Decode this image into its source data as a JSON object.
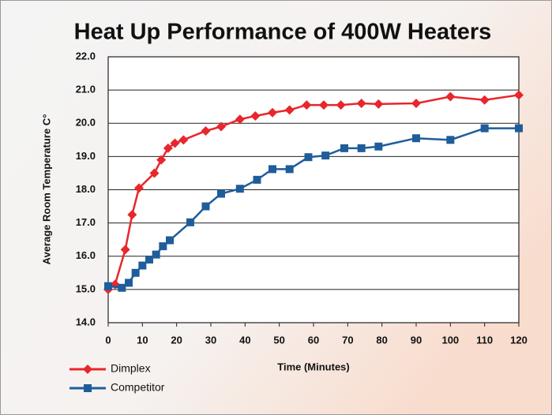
{
  "chart_data": {
    "type": "line",
    "title": "Heat Up Performance of 400W Heaters",
    "x_label": "Time (Minutes)",
    "y_label": "Average Room Temperature C°",
    "xlim": [
      0,
      120
    ],
    "xticks": [
      0,
      10,
      20,
      30,
      40,
      50,
      60,
      70,
      80,
      90,
      100,
      110,
      120
    ],
    "ylim": [
      14,
      22
    ],
    "yticks": [
      {
        "value": 14,
        "label": "14.0"
      },
      {
        "value": 15,
        "label": "15.0"
      },
      {
        "value": 16,
        "label": "16.0"
      },
      {
        "value": 17,
        "label": "17.0"
      },
      {
        "value": 18,
        "label": "18.0"
      },
      {
        "value": 19,
        "label": "19.0"
      },
      {
        "value": 20,
        "label": "20.0"
      },
      {
        "value": 21,
        "label": "21.0"
      },
      {
        "value": 22,
        "label": "22.0"
      }
    ],
    "grid": true,
    "legend": "lower left",
    "series": [
      {
        "name": "Dimplex",
        "color": "#e8262b",
        "marker": "diamond",
        "x": [
          0,
          2,
          5,
          7,
          9,
          13.5,
          15.5,
          17.5,
          19.5,
          22,
          28.5,
          33,
          38.5,
          43,
          48,
          53,
          58,
          63,
          68,
          74,
          79,
          90,
          100,
          110,
          120
        ],
        "values": [
          15.0,
          15.15,
          16.2,
          17.25,
          18.05,
          18.5,
          18.9,
          19.25,
          19.4,
          19.5,
          19.77,
          19.9,
          20.12,
          20.22,
          20.32,
          20.4,
          20.55,
          20.55,
          20.55,
          20.6,
          20.58,
          20.6,
          20.8,
          20.7,
          20.85
        ]
      },
      {
        "name": "Competitor",
        "color": "#1f5d9a",
        "marker": "square",
        "x": [
          0,
          4,
          6,
          8,
          10,
          12,
          14,
          16,
          18,
          24,
          28.5,
          33,
          38.5,
          43.5,
          48,
          53,
          58.5,
          63.5,
          69,
          74,
          79,
          90,
          100,
          110,
          120
        ],
        "values": [
          15.1,
          15.05,
          15.2,
          15.5,
          15.72,
          15.9,
          16.05,
          16.3,
          16.48,
          17.02,
          17.5,
          17.88,
          18.03,
          18.3,
          18.62,
          18.62,
          18.98,
          19.03,
          19.25,
          19.25,
          19.3,
          19.55,
          19.5,
          19.85,
          19.85
        ]
      }
    ]
  }
}
